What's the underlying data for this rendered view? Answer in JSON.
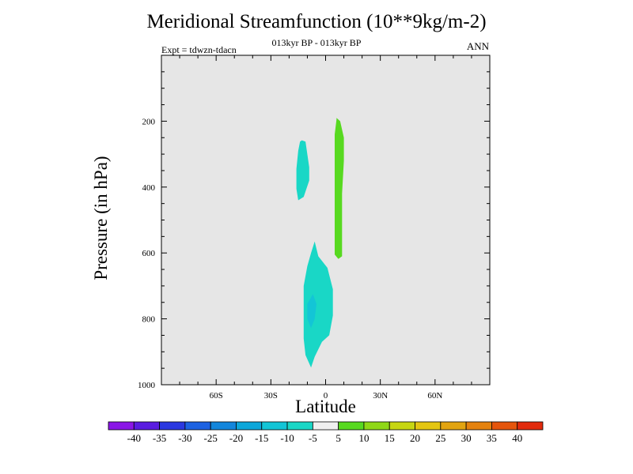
{
  "title": "Meridional Streamfunction (10**9kg/m-2)",
  "subtitle": "013kyr BP - 013kyr BP",
  "left_label": "Expt = tdwzn-tdacn",
  "right_label": "ANN",
  "chart_data": {
    "type": "filled-contour",
    "title": "Meridional Streamfunction (10**9kg/m-2)",
    "xlabel": "Latitude",
    "ylabel": "Pressure (in hPa)",
    "xlim": [
      -90,
      90
    ],
    "ylim": [
      1000,
      0
    ],
    "x_ticks": [
      {
        "value": -60,
        "label": "60S"
      },
      {
        "value": -30,
        "label": "30S"
      },
      {
        "value": 0,
        "label": "0"
      },
      {
        "value": 30,
        "label": "30N"
      },
      {
        "value": 60,
        "label": "60N"
      }
    ],
    "y_ticks": [
      {
        "value": 200,
        "label": "200"
      },
      {
        "value": 400,
        "label": "400"
      },
      {
        "value": 600,
        "label": "600"
      },
      {
        "value": 800,
        "label": "800"
      },
      {
        "value": 1000,
        "label": "1000"
      }
    ],
    "background_fill": "#e6e6e6",
    "regions": [
      {
        "name": "upper-negative-cell",
        "level": -10,
        "color": "#19d7c6",
        "points": [
          [
            -13,
            258
          ],
          [
            -11,
            262
          ],
          [
            -10,
            300
          ],
          [
            -9,
            340
          ],
          [
            -9,
            380
          ],
          [
            -12,
            430
          ],
          [
            -15,
            440
          ],
          [
            -16,
            405
          ],
          [
            -16,
            345
          ],
          [
            -15,
            290
          ],
          [
            -14,
            262
          ]
        ]
      },
      {
        "name": "upper-positive-cell",
        "level": 10,
        "color": "#57d920",
        "points": [
          [
            6,
            190
          ],
          [
            8,
            200
          ],
          [
            10,
            250
          ],
          [
            10,
            320
          ],
          [
            9,
            420
          ],
          [
            9,
            530
          ],
          [
            9,
            610
          ],
          [
            7,
            618
          ],
          [
            5,
            605
          ],
          [
            5,
            450
          ],
          [
            5,
            330
          ],
          [
            5,
            240
          ],
          [
            6,
            195
          ]
        ]
      },
      {
        "name": "lower-negative-cell",
        "level": -10,
        "color": "#19d7c6",
        "points": [
          [
            -6,
            565
          ],
          [
            -4,
            610
          ],
          [
            1,
            645
          ],
          [
            4,
            710
          ],
          [
            4,
            790
          ],
          [
            2,
            850
          ],
          [
            -2,
            870
          ],
          [
            -6,
            915
          ],
          [
            -8,
            948
          ],
          [
            -11,
            910
          ],
          [
            -12,
            860
          ],
          [
            -12,
            780
          ],
          [
            -12,
            700
          ],
          [
            -10,
            640
          ],
          [
            -8,
            600
          ]
        ]
      },
      {
        "name": "lower-negative-core",
        "level": -15,
        "color": "#13c5d6",
        "points": [
          [
            -7,
            725
          ],
          [
            -5,
            755
          ],
          [
            -6,
            800
          ],
          [
            -8,
            828
          ],
          [
            -10,
            800
          ],
          [
            -10,
            755
          ]
        ]
      }
    ],
    "colorbar": {
      "labels": [
        "-40",
        "-35",
        "-30",
        "-25",
        "-20",
        "-15",
        "-10",
        "-5",
        "5",
        "10",
        "15",
        "20",
        "25",
        "30",
        "35",
        "40"
      ],
      "colors": [
        "#8a16e6",
        "#5a1ce0",
        "#2b38e0",
        "#1d62e2",
        "#1386dc",
        "#0ca7da",
        "#13c5d6",
        "#19d7c6",
        "#efefef",
        "#57d920",
        "#8fd816",
        "#c7d611",
        "#e4c611",
        "#e2a410",
        "#e5820e",
        "#e5550c",
        "#e22a0c"
      ]
    }
  }
}
